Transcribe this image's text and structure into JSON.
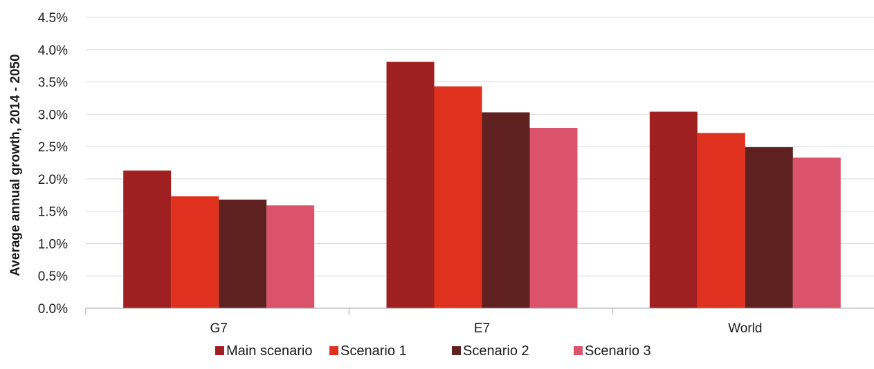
{
  "chart_data": {
    "type": "bar",
    "title": "",
    "xlabel": "",
    "ylabel": "Average annual growth, 2014 - 2050",
    "categories": [
      "G7",
      "E7",
      "World"
    ],
    "series": [
      {
        "name": "Main scenario",
        "color": "#a01f21",
        "values": [
          2.13,
          3.81,
          3.04
        ]
      },
      {
        "name": "Scenario 1",
        "color": "#e0311f",
        "values": [
          1.73,
          3.43,
          2.71
        ]
      },
      {
        "name": "Scenario 2",
        "color": "#5f2020",
        "values": [
          1.68,
          3.03,
          2.49
        ]
      },
      {
        "name": "Scenario 3",
        "color": "#db536b",
        "values": [
          1.59,
          2.79,
          2.33
        ]
      }
    ],
    "ylim": [
      0,
      4.5
    ],
    "yticks": [
      0,
      0.5,
      1.0,
      1.5,
      2.0,
      2.5,
      3.0,
      3.5,
      4.0,
      4.5
    ],
    "ytick_labels": [
      "0.0%",
      "0.5%",
      "1.0%",
      "1.5%",
      "2.0%",
      "2.5%",
      "3.0%",
      "3.5%",
      "4.0%",
      "4.5%"
    ],
    "grid": true,
    "legend_position": "bottom"
  }
}
